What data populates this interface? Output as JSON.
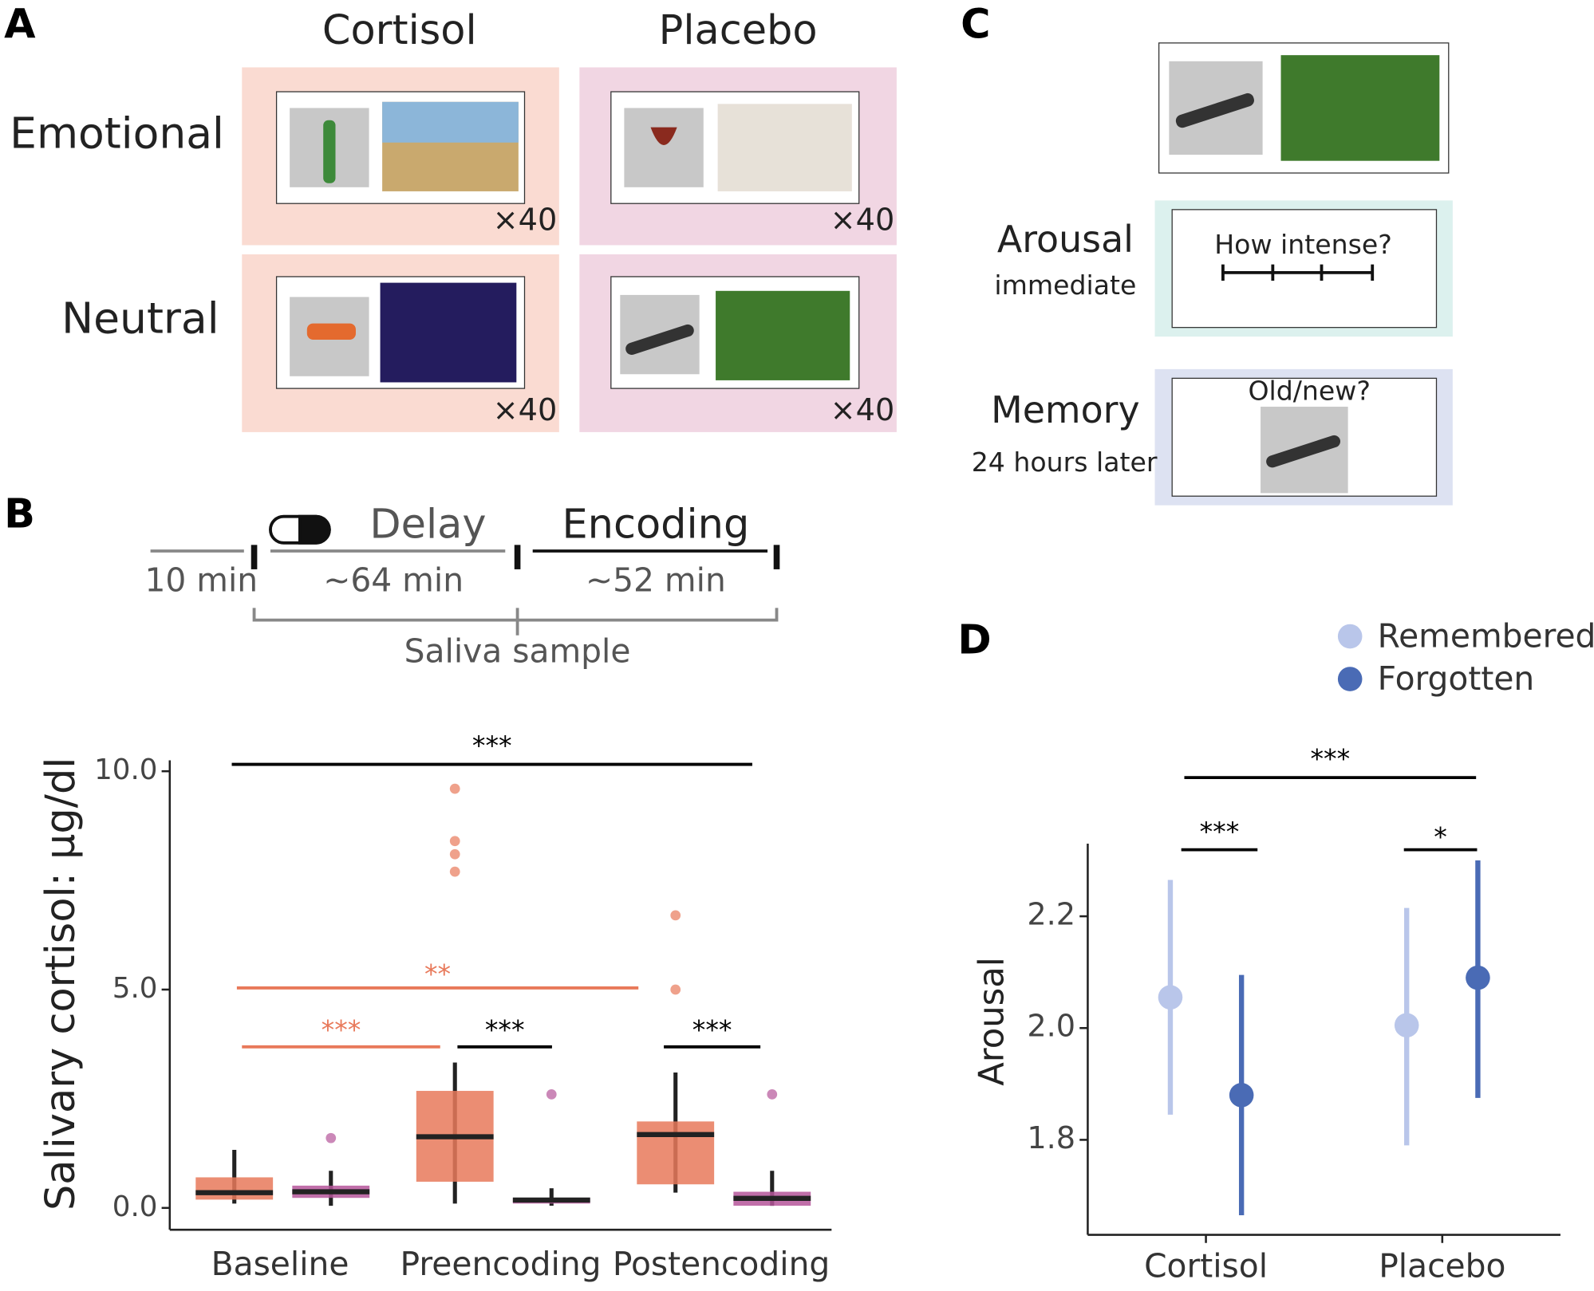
{
  "panel_labels": [
    "A",
    "B",
    "C",
    "D"
  ],
  "design": {
    "columns": [
      "Cortisol",
      "Placebo"
    ],
    "rows": [
      "Emotional",
      "Neutral"
    ],
    "counts": [
      [
        "×40",
        "×40"
      ],
      [
        "×40",
        "×40"
      ]
    ]
  },
  "timeline": {
    "phases": [
      "Delay",
      "Encoding"
    ],
    "durations": [
      "10 min",
      "~64 min",
      "~52 min"
    ],
    "sample_label": "Saliva sample"
  },
  "task": {
    "arousal": {
      "title": "Arousal",
      "subtitle": "immediate",
      "question": "How intense?"
    },
    "memory": {
      "title": "Memory",
      "subtitle": "24 hours later",
      "question": "Old/new?"
    }
  },
  "chart_data": [
    {
      "type": "box",
      "y_label": "Salivary cortisol: µg/dl",
      "categories": [
        "Baseline",
        "Preencoding",
        "Postencoding"
      ],
      "ylim": [
        -0.5,
        10.25
      ],
      "yticks": [
        {
          "value": 0,
          "label": "0.0"
        },
        {
          "value": 5,
          "label": "5.0"
        },
        {
          "value": 10,
          "label": "10.0"
        }
      ],
      "series": [
        {
          "color": "#e8795a",
          "low": [
            0.1,
            0.1,
            0.35
          ],
          "q1": [
            0.19,
            0.6,
            0.54
          ],
          "median": [
            0.35,
            1.63,
            1.68
          ],
          "q3": [
            0.7,
            2.68,
            1.98
          ],
          "high": [
            1.33,
            3.33,
            3.1
          ],
          "outliers": [
            [],
            [
              9.6,
              8.4,
              8.1,
              7.7
            ],
            [
              6.7,
              5.0
            ]
          ]
        },
        {
          "color": "#b5569a",
          "low": [
            0.05,
            0.05,
            0.05
          ],
          "q1": [
            0.23,
            0.1,
            0.05
          ],
          "median": [
            0.37,
            0.18,
            0.22
          ],
          "q3": [
            0.51,
            0.23,
            0.37
          ],
          "high": [
            0.85,
            0.45,
            0.85
          ],
          "outliers": [
            [
              1.6
            ],
            [
              2.6
            ],
            [
              2.6
            ]
          ]
        }
      ],
      "annotations": [
        {
          "label": "***",
          "color": "#000000"
        },
        {
          "label": "**",
          "color": "#e8795a"
        },
        {
          "label": "***",
          "color": "#e8795a"
        },
        {
          "label": "***",
          "color": "#000000"
        },
        {
          "label": "***",
          "color": "#000000"
        }
      ]
    },
    {
      "type": "pointrange",
      "y_label": "Arousal",
      "categories": [
        "Cortisol",
        "Placebo"
      ],
      "ylim": [
        1.63,
        2.33
      ],
      "yticks": [
        {
          "value": 1.8,
          "label": "1.8"
        },
        {
          "value": 2.0,
          "label": "2.0"
        },
        {
          "value": 2.2,
          "label": "2.2"
        }
      ],
      "series": [
        {
          "name": "Remembered",
          "color": "#b9c6ea",
          "values": [
            2.055,
            2.005
          ],
          "lower": [
            1.845,
            1.79
          ],
          "upper": [
            2.265,
            2.215
          ]
        },
        {
          "name": "Forgotten",
          "color": "#4a6bb5",
          "values": [
            1.88,
            2.09
          ],
          "lower": [
            1.665,
            1.875
          ],
          "upper": [
            2.095,
            2.3
          ]
        }
      ],
      "annotations": [
        {
          "label": "***",
          "color": "#000000"
        },
        {
          "label": "***",
          "color": "#000000"
        },
        {
          "label": "*",
          "color": "#000000"
        }
      ]
    }
  ]
}
